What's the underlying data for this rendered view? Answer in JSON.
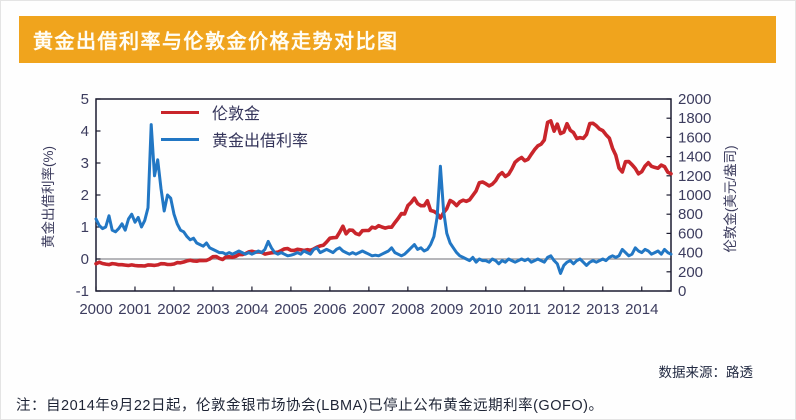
{
  "page": {
    "title": "黄金出借利率与伦敦金价格走势对比图",
    "source": "数据来源：路透",
    "note": "注：自2014年9月22日起，伦敦金银市场协会(LBMA)已停止公布黄金远期利率(GOFO)。"
  },
  "colors": {
    "header_bg": "#F0A41D",
    "header_text": "#FFFDF5",
    "london_gold": "#C9252B",
    "lease_rate": "#2277C4",
    "axis": "#1c1c30",
    "tick_text": "#3c3c5e",
    "zero_line": "#8a8a92"
  },
  "chart_data": {
    "type": "line",
    "title": "黄金出借利率与伦敦金价格走势对比图",
    "x_range": [
      2000,
      2014.75
    ],
    "x_ticks": [
      2000,
      2001,
      2002,
      2003,
      2004,
      2005,
      2006,
      2007,
      2008,
      2009,
      2010,
      2011,
      2012,
      2013,
      2014
    ],
    "left_axis": {
      "label": "黄金出借利率(%)",
      "range": [
        -1,
        5
      ],
      "ticks": [
        5,
        4,
        3,
        2,
        1,
        0,
        -1
      ]
    },
    "right_axis": {
      "label": "伦敦金(美元/盎司)",
      "range": [
        0,
        2000
      ],
      "ticks": [
        2000,
        1800,
        1600,
        1400,
        1200,
        1000,
        800,
        600,
        400,
        200,
        0
      ]
    },
    "legend": [
      {
        "label": "伦敦金",
        "color": "#C9252B"
      },
      {
        "label": "黄金出借利率",
        "color": "#2277C4"
      }
    ],
    "series": [
      {
        "name": "伦敦金",
        "axis": "right",
        "color": "#C9252B",
        "start_year": 2000,
        "interval": "monthly",
        "values": [
          284,
          300,
          286,
          280,
          275,
          285,
          281,
          274,
          274,
          270,
          266,
          272,
          266,
          262,
          263,
          260,
          272,
          270,
          267,
          272,
          284,
          283,
          276,
          276,
          281,
          296,
          294,
          302,
          314,
          321,
          313,
          310,
          319,
          317,
          319,
          333,
          357,
          359,
          340,
          328,
          355,
          356,
          351,
          360,
          379,
          379,
          389,
          407,
          414,
          405,
          407,
          403,
          384,
          392,
          398,
          401,
          405,
          421,
          439,
          442,
          424,
          423,
          434,
          429,
          422,
          430,
          424,
          437,
          456,
          470,
          477,
          510,
          550,
          555,
          557,
          611,
          675,
          596,
          634,
          632,
          598,
          586,
          628,
          630,
          631,
          665,
          655,
          680,
          667,
          655,
          665,
          665,
          713,
          755,
          806,
          803,
          890,
          922,
          968,
          910,
          889,
          889,
          940,
          839,
          829,
          807,
          760,
          816,
          858,
          943,
          924,
          890,
          928,
          946,
          934,
          950,
          996,
          1043,
          1127,
          1135,
          1118,
          1095,
          1113,
          1149,
          1205,
          1233,
          1193,
          1216,
          1271,
          1342,
          1370,
          1391,
          1356,
          1373,
          1424,
          1473,
          1511,
          1529,
          1573,
          1756,
          1772,
          1666,
          1739,
          1640,
          1655,
          1743,
          1674,
          1650,
          1589,
          1598,
          1590,
          1630,
          1745,
          1747,
          1722,
          1688,
          1671,
          1628,
          1593,
          1487,
          1414,
          1280,
          1240,
          1347,
          1348,
          1316,
          1276,
          1221,
          1244,
          1301,
          1336,
          1299,
          1288,
          1279,
          1311,
          1296,
          1238,
          1222
        ]
      },
      {
        "name": "黄金出借利率",
        "axis": "left",
        "color": "#2277C4",
        "start_year": 2000,
        "interval": "monthly",
        "values": [
          1.25,
          1.05,
          0.95,
          1.0,
          1.35,
          0.9,
          0.85,
          0.95,
          1.1,
          0.9,
          1.25,
          1.4,
          1.15,
          1.3,
          1.0,
          1.2,
          1.6,
          4.2,
          2.6,
          3.1,
          2.2,
          1.5,
          2.0,
          1.9,
          1.4,
          1.1,
          0.9,
          0.85,
          0.7,
          0.6,
          0.65,
          0.5,
          0.45,
          0.4,
          0.5,
          0.35,
          0.3,
          0.25,
          0.2,
          0.2,
          0.15,
          0.2,
          0.15,
          0.2,
          0.25,
          0.2,
          0.15,
          0.2,
          0.15,
          0.2,
          0.25,
          0.2,
          0.3,
          0.55,
          0.35,
          0.2,
          0.15,
          0.2,
          0.15,
          0.1,
          0.12,
          0.15,
          0.2,
          0.15,
          0.25,
          0.2,
          0.15,
          0.3,
          0.35,
          0.2,
          0.25,
          0.3,
          0.25,
          0.2,
          0.3,
          0.35,
          0.25,
          0.2,
          0.15,
          0.2,
          0.15,
          0.2,
          0.25,
          0.2,
          0.15,
          0.1,
          0.12,
          0.1,
          0.15,
          0.2,
          0.25,
          0.35,
          0.2,
          0.15,
          0.1,
          0.15,
          0.25,
          0.35,
          0.45,
          0.3,
          0.35,
          0.25,
          0.3,
          0.45,
          0.7,
          1.3,
          2.9,
          1.5,
          0.8,
          0.5,
          0.35,
          0.2,
          0.1,
          0.05,
          0,
          -0.05,
          0.05,
          -0.1,
          0,
          -0.05,
          -0.05,
          -0.1,
          0,
          -0.05,
          -0.15,
          -0.05,
          -0.1,
          0,
          -0.05,
          -0.1,
          -0.05,
          0,
          -0.05,
          0,
          -0.1,
          -0.05,
          0,
          -0.05,
          -0.1,
          0.05,
          0.1,
          -0.05,
          -0.15,
          -0.45,
          -0.2,
          -0.1,
          -0.05,
          -0.15,
          -0.05,
          0,
          -0.1,
          -0.2,
          -0.1,
          -0.05,
          -0.1,
          -0.05,
          0,
          -0.05,
          0.05,
          0.1,
          0.05,
          0.1,
          0.3,
          0.2,
          0.1,
          0.15,
          0.35,
          0.25,
          0.2,
          0.3,
          0.25,
          0.15,
          0.2,
          0.25,
          0.15,
          0.3,
          0.2,
          0.15
        ]
      }
    ]
  }
}
